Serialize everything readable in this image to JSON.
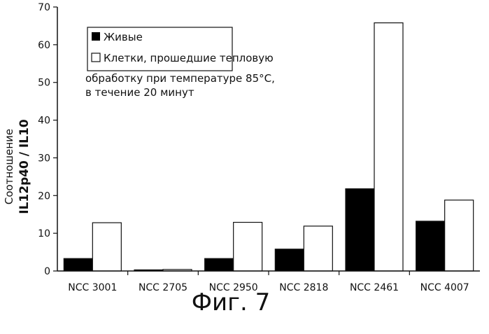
{
  "chart_data": {
    "type": "bar",
    "categories": [
      "NCC 3001",
      "NCC 2705",
      "NCC 2950",
      "NCC 2818",
      "NCC 2461",
      "NCC 4007"
    ],
    "series": [
      {
        "name": "Живые",
        "values": [
          3.3,
          0.3,
          3.3,
          5.8,
          21.8,
          13.2
        ],
        "color": "#000000"
      },
      {
        "name": "Клетки, прошедшие тепловую обработку при температуре 85°C, в течение 20 минут",
        "values": [
          12.8,
          0.4,
          12.9,
          11.9,
          65.8,
          18.8
        ],
        "color": "#ffffff"
      }
    ],
    "ylabel_line1": "Соотношение",
    "ylabel_line2": "IL12p40 / IL10",
    "ylim": [
      0,
      70
    ],
    "yticks": [
      0,
      10,
      20,
      30,
      40,
      50,
      60,
      70
    ],
    "legend": {
      "placement": "top-left",
      "entries": [
        "Живые",
        [
          "Клетки, прошедшие тепловую",
          "обработку при температуре 85°C,",
          "в течение 20 минут"
        ]
      ]
    },
    "grid": false
  },
  "caption": "Фиг. 7"
}
